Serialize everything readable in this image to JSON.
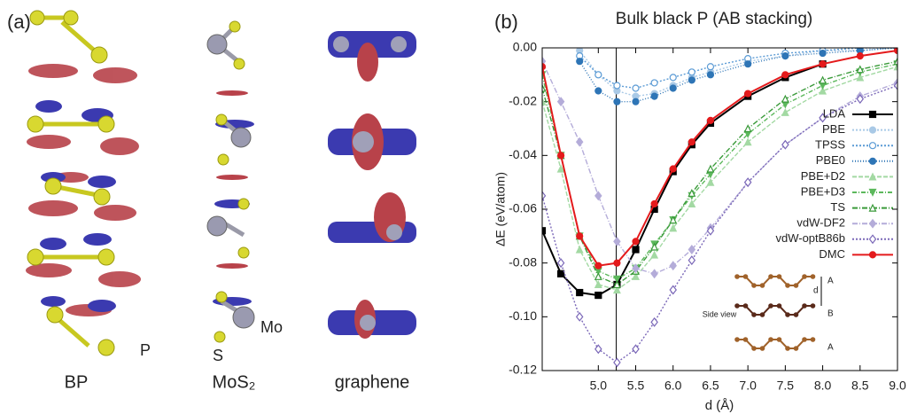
{
  "panel_a": {
    "label": "(a)",
    "columns": [
      "BP",
      "MoS₂",
      "graphene"
    ],
    "atom_labels": [
      "P",
      "S",
      "Mo"
    ]
  },
  "chart_data": {
    "type": "line",
    "panel_label": "(b)",
    "title": "Bulk black P (AB stacking)",
    "x_label": "d (Å)",
    "y_label": "ΔE (eV/atom)",
    "x": [
      4.25,
      4.5,
      4.75,
      5.0,
      5.25,
      5.5,
      5.75,
      6.0,
      6.25,
      6.5,
      7.0,
      7.5,
      8.0,
      8.5,
      9.0
    ],
    "xlim": [
      4.25,
      9.0
    ],
    "xticks": [
      {
        "value": 5.0,
        "label": "5.0"
      },
      5.5,
      {
        "value": 6.0,
        "label": "6.0"
      },
      6.5,
      {
        "value": 7.0,
        "label": "7.0"
      },
      7.5,
      {
        "value": 8.0,
        "label": "8.0"
      },
      8.5,
      {
        "value": 9.0,
        "label": "9.0"
      }
    ],
    "ylim": [
      -0.12,
      0.0
    ],
    "yticks": [
      {
        "value": 0,
        "label": "0.00"
      },
      {
        "value": -0.02,
        "label": "-0.02"
      },
      {
        "value": -0.04,
        "label": "-0.04"
      },
      {
        "value": -0.06,
        "label": "-0.06"
      },
      {
        "value": -0.08,
        "label": "-0.08"
      },
      {
        "value": -0.1,
        "label": "-0.10"
      },
      {
        "value": -0.12,
        "label": "-0.12"
      }
    ],
    "vline_x": 5.24,
    "series": [
      {
        "name": "LDA",
        "color": "#000000",
        "marker": "square",
        "dash": "",
        "values": [
          -0.068,
          -0.084,
          -0.091,
          -0.092,
          -0.088,
          -0.075,
          -0.06,
          -0.046,
          -0.036,
          -0.028,
          -0.018,
          -0.011,
          -0.006,
          null,
          null
        ]
      },
      {
        "name": "PBE",
        "color": "#a9c9e6",
        "marker": "circle",
        "dash": "2,2",
        "values": [
          null,
          null,
          -0.001,
          -0.01,
          -0.016,
          -0.018,
          -0.017,
          -0.014,
          -0.011,
          -0.009,
          -0.005,
          -0.003,
          -0.001,
          -0.001,
          0
        ]
      },
      {
        "name": "TPSS",
        "color": "#5b9bd5",
        "marker": "circle-open",
        "dash": "2,2",
        "values": [
          null,
          null,
          -0.003,
          -0.01,
          -0.014,
          -0.015,
          -0.013,
          -0.011,
          -0.009,
          -0.007,
          -0.004,
          -0.002,
          -0.001,
          0,
          0
        ]
      },
      {
        "name": "PBE0",
        "color": "#2e75b6",
        "marker": "circle",
        "dash": "1,2",
        "values": [
          null,
          null,
          -0.005,
          -0.016,
          -0.02,
          -0.02,
          -0.018,
          -0.015,
          -0.012,
          -0.01,
          -0.006,
          -0.003,
          -0.002,
          -0.001,
          0
        ]
      },
      {
        "name": "PBE+D2",
        "color": "#a3d9a3",
        "marker": "triangle",
        "dash": "5,2",
        "values": [
          -0.02,
          -0.045,
          -0.075,
          -0.088,
          -0.09,
          -0.085,
          -0.077,
          -0.067,
          -0.058,
          -0.05,
          -0.035,
          -0.024,
          -0.016,
          -0.011,
          -0.007
        ]
      },
      {
        "name": "PBE+D3",
        "color": "#5cb85c",
        "marker": "triangle-down",
        "dash": "5,2,1,2",
        "values": [
          -0.01,
          -0.04,
          -0.07,
          -0.083,
          -0.086,
          -0.082,
          -0.073,
          -0.064,
          -0.055,
          -0.047,
          -0.032,
          -0.021,
          -0.014,
          -0.009,
          -0.006
        ]
      },
      {
        "name": "TS",
        "color": "#3a9a3a",
        "marker": "triangle-open",
        "dash": "6,2,1,2",
        "values": [
          -0.015,
          -0.04,
          -0.07,
          -0.085,
          -0.088,
          -0.083,
          -0.074,
          -0.064,
          -0.054,
          -0.045,
          -0.03,
          -0.019,
          -0.012,
          -0.008,
          -0.005
        ]
      },
      {
        "name": "vdW-DF2",
        "color": "#b4acd9",
        "marker": "diamond",
        "dash": "6,2,1,2",
        "values": [
          -0.005,
          -0.02,
          -0.035,
          -0.055,
          -0.072,
          -0.082,
          -0.084,
          -0.081,
          -0.075,
          -0.067,
          -0.05,
          -0.036,
          -0.026,
          -0.018,
          -0.013
        ]
      },
      {
        "name": "vdW-optB86b",
        "color": "#7b68b8",
        "marker": "diamond-open",
        "dash": "2,2",
        "values": [
          -0.055,
          -0.08,
          -0.1,
          -0.112,
          -0.117,
          -0.112,
          -0.102,
          -0.09,
          -0.079,
          -0.068,
          -0.05,
          -0.036,
          -0.026,
          -0.019,
          -0.014
        ]
      },
      {
        "name": "DMC",
        "color": "#e41a1c",
        "marker": "circle",
        "dash": "",
        "values": [
          -0.007,
          -0.04,
          -0.07,
          -0.081,
          -0.08,
          -0.072,
          -0.058,
          -0.045,
          -0.035,
          -0.027,
          -0.017,
          -0.01,
          -0.006,
          -0.003,
          -0.001
        ]
      }
    ],
    "inset_labels": [
      "d",
      "A",
      "B",
      "A",
      "Side view"
    ]
  }
}
